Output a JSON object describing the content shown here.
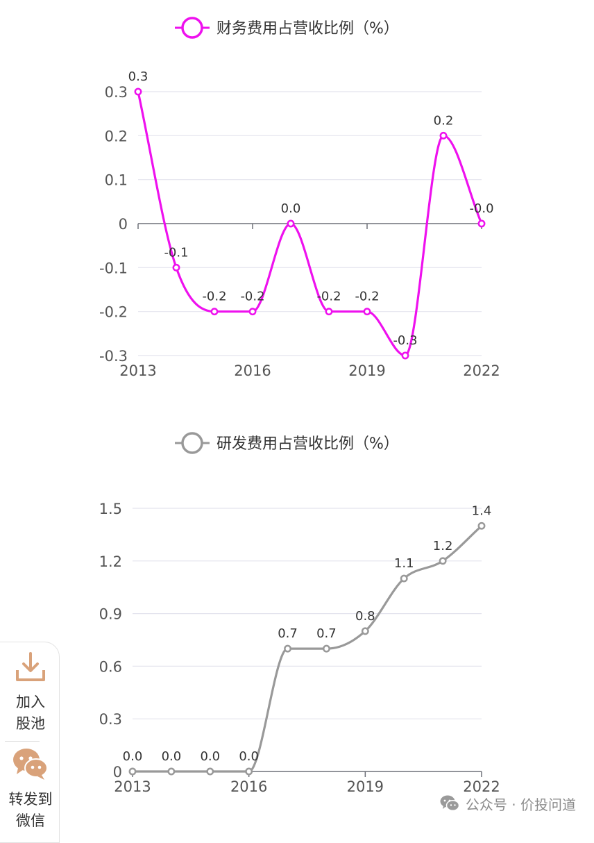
{
  "chart_data": [
    {
      "type": "line",
      "legend_position": "top-center",
      "x": [
        "2013",
        "2014",
        "2015",
        "2016",
        "2017",
        "2018",
        "2019",
        "2020",
        "2021",
        "2022"
      ],
      "xticks": [
        "2013",
        "2016",
        "2019",
        "2022"
      ],
      "series": [
        {
          "name": "财务费用占营收比例（%）",
          "values": [
            0.3,
            -0.1,
            -0.2,
            -0.2,
            0.0,
            -0.2,
            -0.2,
            -0.3,
            0.2,
            -0.0
          ],
          "labels": [
            "0.3",
            "-0.1",
            "-0.2",
            "-0.2",
            "0.0",
            "-0.2",
            "-0.2",
            "-0.3",
            "0.2",
            "-0.0"
          ],
          "color": "#ee11ee"
        }
      ],
      "ylim": [
        -0.3,
        0.3
      ],
      "yticks": [
        -0.3,
        -0.2,
        -0.1,
        0,
        0.1,
        0.2,
        0.3
      ],
      "ytick_labels": [
        "-0.3",
        "-0.2",
        "-0.1",
        "0",
        "0.1",
        "0.2",
        "0.3"
      ],
      "grid": true
    },
    {
      "type": "line",
      "legend_position": "top-center",
      "x": [
        "2013",
        "2014",
        "2015",
        "2016",
        "2017",
        "2018",
        "2019",
        "2020",
        "2021",
        "2022"
      ],
      "xticks": [
        "2013",
        "2016",
        "2019",
        "2022"
      ],
      "series": [
        {
          "name": "研发费用占营收比例（%）",
          "values": [
            0.0,
            0.0,
            0.0,
            0.0,
            0.7,
            0.7,
            0.8,
            1.1,
            1.2,
            1.4
          ],
          "labels": [
            "0.0",
            "0.0",
            "0.0",
            "0.0",
            "0.7",
            "0.7",
            "0.8",
            "1.1",
            "1.2",
            "1.4"
          ],
          "color": "#999999"
        }
      ],
      "ylim": [
        0,
        1.5
      ],
      "yticks": [
        0,
        0.3,
        0.6,
        0.9,
        1.2,
        1.5
      ],
      "ytick_labels": [
        "0",
        "0.3",
        "0.6",
        "0.9",
        "1.2",
        "1.5"
      ],
      "grid": true
    }
  ],
  "side_panel": {
    "items": [
      {
        "label": "加入股池",
        "icon": "download-icon"
      },
      {
        "label": "转发到微信",
        "icon": "wechat-icon"
      }
    ],
    "accent_color": "#d9a27a"
  },
  "watermark": {
    "text": "公众号 · 价投问道",
    "icon": "wechat-icon"
  },
  "colors": {
    "axis": "#6e7079",
    "grid": "#e4e4ee",
    "label": "#333333",
    "tick": "#555555"
  }
}
